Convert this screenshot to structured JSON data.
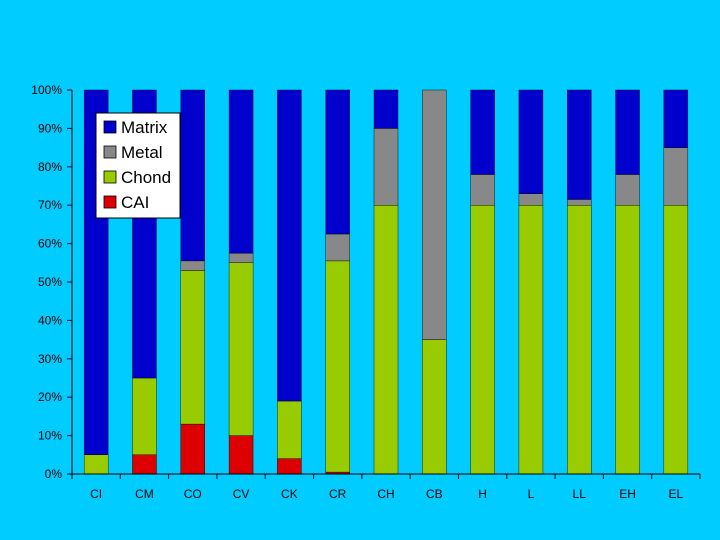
{
  "chart_data": {
    "type": "bar",
    "stacked": true,
    "normalized": true,
    "categories": [
      "CI",
      "CM",
      "CO",
      "CV",
      "CK",
      "CR",
      "CH",
      "CB",
      "H",
      "L",
      "LL",
      "EH",
      "EL"
    ],
    "series": [
      {
        "name": "CAI",
        "color": "#dd0000",
        "values": [
          0,
          5,
          13,
          10,
          4,
          0.5,
          0,
          0,
          0,
          0,
          0,
          0,
          0
        ]
      },
      {
        "name": "Chond",
        "color": "#99cc00",
        "values": [
          5,
          20,
          40,
          45,
          15,
          55,
          70,
          35,
          70,
          70,
          70,
          70,
          70
        ]
      },
      {
        "name": "Metal",
        "color": "#888888",
        "values": [
          0,
          0,
          2.5,
          2.5,
          0,
          7,
          20,
          65,
          8,
          3,
          1.5,
          8,
          15
        ]
      },
      {
        "name": "Matrix",
        "color": "#0000cc",
        "values": [
          95,
          75,
          44.5,
          42.5,
          81,
          37.5,
          10,
          0,
          22,
          27,
          28.5,
          22,
          15
        ]
      }
    ],
    "legend_order": [
      "Matrix",
      "Metal",
      "Chond",
      "CAI"
    ],
    "y_ticks": [
      "0%",
      "10%",
      "20%",
      "30%",
      "40%",
      "50%",
      "60%",
      "70%",
      "80%",
      "90%",
      "100%"
    ],
    "ylim": [
      0,
      100
    ],
    "grid": false,
    "legend_position": "top-left",
    "title": "",
    "xlabel": "",
    "ylabel": ""
  }
}
